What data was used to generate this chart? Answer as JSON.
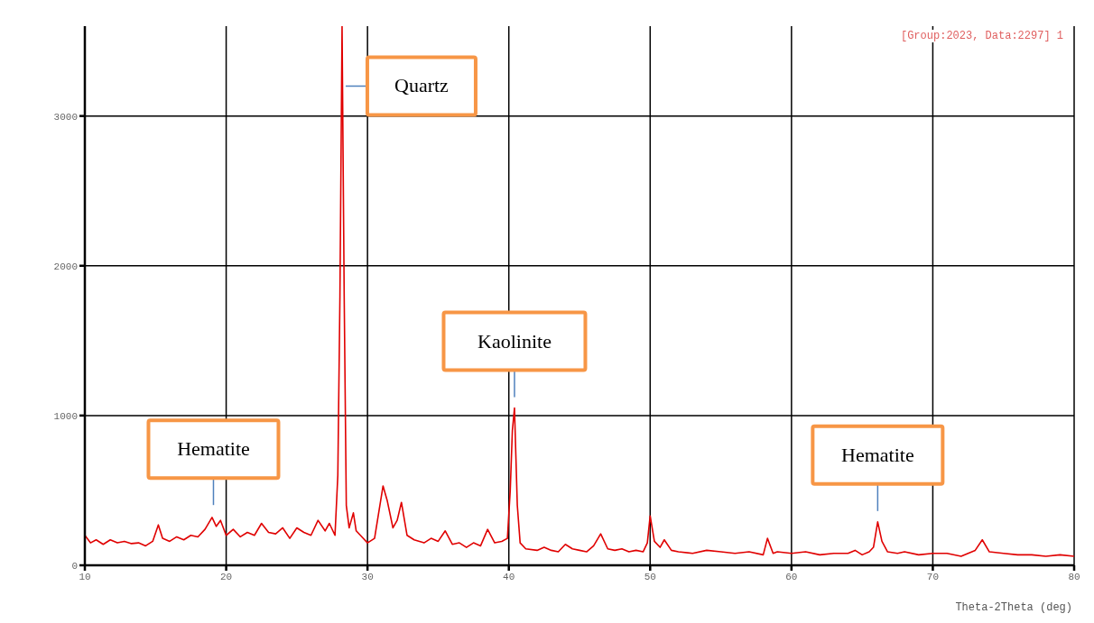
{
  "chart_data": {
    "type": "line",
    "xlabel": "Theta-2Theta (deg)",
    "xlim": [
      10,
      80
    ],
    "xticks": [
      10,
      20,
      30,
      40,
      50,
      60,
      70,
      80
    ],
    "ylim": [
      0,
      3600
    ],
    "yticks": [
      0,
      1000,
      2000,
      3000
    ],
    "grid": true,
    "marker": "none",
    "line_style": "solid",
    "annotations": [
      "[Group:2023, Data:2297] 1",
      {
        "text": "Quartz",
        "x": 28.2,
        "y": 3200
      },
      {
        "text": "Kaolinite",
        "x": 40.4,
        "y": 1050
      },
      {
        "text": "Hematite",
        "x": 19.1,
        "y": 330
      },
      {
        "text": "Hematite",
        "x": 66.1,
        "y": 290
      }
    ],
    "series": [
      {
        "color": "#e00000",
        "x": [
          10,
          10.4,
          10.8,
          11.3,
          11.8,
          12.3,
          12.8,
          13.3,
          13.8,
          14.3,
          14.8,
          15.2,
          15.5,
          16,
          16.5,
          17,
          17.5,
          18,
          18.5,
          19,
          19.3,
          19.6,
          20,
          20.5,
          21,
          21.5,
          22,
          22.5,
          23,
          23.5,
          24,
          24.5,
          25,
          25.5,
          26,
          26.5,
          27,
          27.3,
          27.7,
          27.9,
          28.05,
          28.2,
          28.35,
          28.5,
          28.7,
          29,
          29.2,
          29.5,
          30,
          30.5,
          31.1,
          31.4,
          31.8,
          32.1,
          32.4,
          32.8,
          33.3,
          34,
          34.5,
          35,
          35.5,
          36,
          36.5,
          37,
          37.5,
          38,
          38.5,
          39,
          39.5,
          39.9,
          40.1,
          40.25,
          40.4,
          40.6,
          40.8,
          41.2,
          42,
          42.5,
          43,
          43.5,
          44,
          44.5,
          45,
          45.5,
          46,
          46.5,
          47,
          47.5,
          48,
          48.5,
          49,
          49.5,
          49.8,
          50,
          50.3,
          50.7,
          51,
          51.5,
          52,
          53,
          54,
          55,
          56,
          57,
          58,
          58.3,
          58.7,
          59,
          60,
          61,
          62,
          63,
          64,
          64.5,
          65,
          65.5,
          65.8,
          66.1,
          66.4,
          66.8,
          67.5,
          68,
          69,
          70,
          71,
          72,
          73,
          73.5,
          74,
          75,
          76,
          77,
          78,
          79,
          80
        ],
        "values": [
          200,
          150,
          170,
          140,
          170,
          150,
          160,
          145,
          150,
          130,
          160,
          270,
          180,
          160,
          190,
          170,
          200,
          190,
          240,
          320,
          260,
          300,
          200,
          240,
          190,
          220,
          200,
          280,
          220,
          210,
          250,
          180,
          250,
          220,
          200,
          300,
          230,
          280,
          200,
          600,
          1800,
          3600,
          1800,
          400,
          250,
          350,
          230,
          200,
          150,
          180,
          530,
          430,
          250,
          300,
          420,
          200,
          170,
          150,
          180,
          160,
          230,
          140,
          150,
          120,
          150,
          130,
          240,
          150,
          160,
          180,
          500,
          900,
          1050,
          400,
          150,
          110,
          100,
          120,
          100,
          90,
          140,
          110,
          100,
          90,
          130,
          210,
          110,
          100,
          110,
          90,
          100,
          90,
          150,
          330,
          160,
          120,
          170,
          100,
          90,
          80,
          100,
          90,
          80,
          90,
          70,
          180,
          80,
          90,
          80,
          90,
          70,
          80,
          80,
          100,
          70,
          90,
          120,
          290,
          160,
          90,
          80,
          90,
          70,
          80,
          80,
          60,
          100,
          170,
          90,
          80,
          70,
          70,
          60,
          70,
          60
        ]
      }
    ]
  }
}
